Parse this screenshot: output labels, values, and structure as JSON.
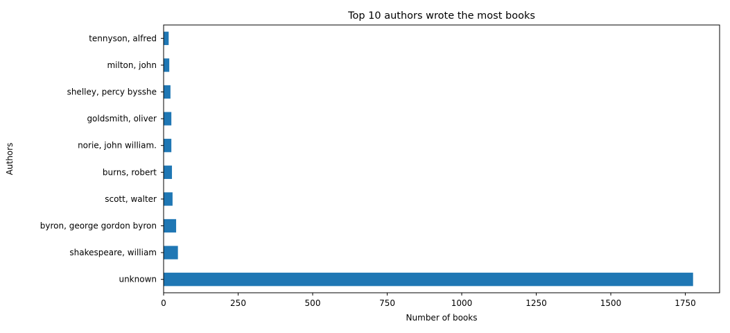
{
  "chart_data": {
    "type": "bar",
    "orientation": "horizontal",
    "title": "Top 10 authors wrote the most books",
    "xlabel": "Number of books",
    "ylabel": "Authors",
    "categories": [
      "unknown",
      "shakespeare, william",
      "byron, george gordon byron",
      "scott, walter",
      "burns, robert",
      "norie, john william.",
      "goldsmith, oliver",
      "shelley, percy bysshe",
      "milton, john",
      "tennyson, alfred"
    ],
    "values": [
      1776,
      48,
      42,
      30,
      28,
      26,
      26,
      23,
      19,
      17
    ],
    "xlim": [
      0,
      1865
    ],
    "xticks": [
      0,
      250,
      500,
      750,
      1000,
      1250,
      1500,
      1750
    ],
    "grid": false,
    "bar_color": "#1f77b4"
  }
}
